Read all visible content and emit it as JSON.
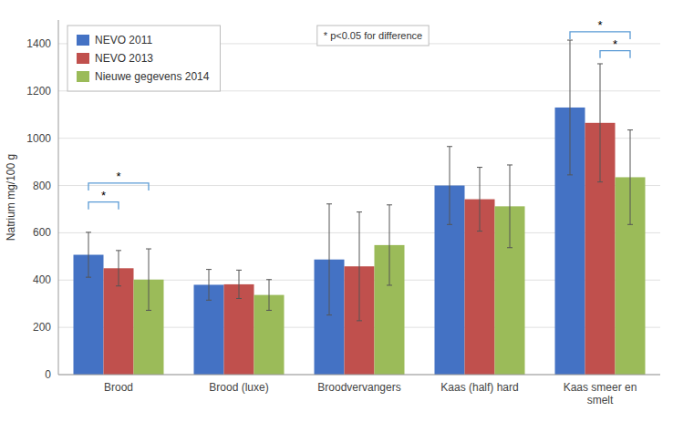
{
  "chart_data": {
    "type": "bar",
    "categories": [
      "Brood",
      "Brood (luxe)",
      "Broodvervangers",
      "Kaas (half) hard",
      "Kaas smeer en\nsmelt"
    ],
    "series": [
      {
        "name": "NEVO 2011",
        "color": "#4472C4",
        "values": [
          507,
          380,
          487,
          800,
          1130
        ],
        "errors": [
          95,
          65,
          235,
          165,
          285
        ]
      },
      {
        "name": "NEVO 2013",
        "color": "#C0504D",
        "values": [
          450,
          382,
          458,
          742,
          1065
        ],
        "errors": [
          75,
          60,
          230,
          135,
          250
        ]
      },
      {
        "name": "Nieuwe gegevens 2014",
        "color": "#9BBB59",
        "values": [
          402,
          337,
          548,
          712,
          835
        ],
        "errors": [
          130,
          65,
          170,
          175,
          200
        ]
      }
    ],
    "ylabel": "Natrium mg/100 g",
    "ylim": [
      0,
      1500
    ],
    "yticks": [
      0,
      200,
      400,
      600,
      800,
      1000,
      1200,
      1400
    ],
    "grid": true,
    "legend": "upper left",
    "annotation": "* p<0.05 for difference",
    "significance": [
      {
        "category": "Brood",
        "from": "NEVO 2011",
        "to": "Nieuwe gegevens 2014",
        "y": 810,
        "label": "*",
        "color": "#5B9BD5"
      },
      {
        "category": "Brood",
        "from": "NEVO 2011",
        "to": "NEVO 2013",
        "y": 730,
        "label": "*",
        "color": "#5B9BD5"
      },
      {
        "category": "Kaas smeer en\nsmelt",
        "from": "NEVO 2011",
        "to": "Nieuwe gegevens 2014",
        "y": 1450,
        "label": "*",
        "color": "#5B9BD5"
      },
      {
        "category": "Kaas smeer en\nsmelt",
        "from": "NEVO 2013",
        "to": "Nieuwe gegevens 2014",
        "y": 1370,
        "label": "*",
        "color": "#5B9BD5"
      }
    ]
  }
}
